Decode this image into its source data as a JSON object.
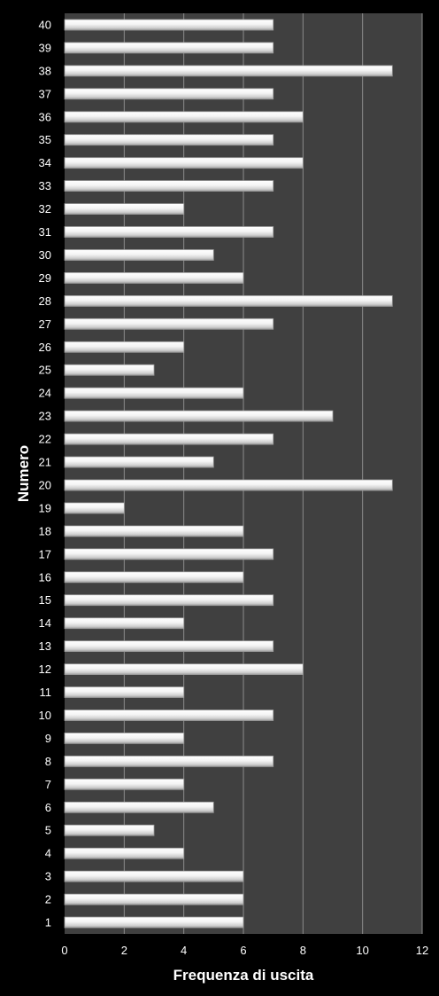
{
  "chart_data": {
    "type": "bar",
    "orientation": "horizontal",
    "categories": [
      "1",
      "2",
      "3",
      "4",
      "5",
      "6",
      "7",
      "8",
      "9",
      "10",
      "11",
      "12",
      "13",
      "14",
      "15",
      "16",
      "17",
      "18",
      "19",
      "20",
      "21",
      "22",
      "23",
      "24",
      "25",
      "26",
      "27",
      "28",
      "29",
      "30",
      "31",
      "32",
      "33",
      "34",
      "35",
      "36",
      "37",
      "38",
      "39",
      "40"
    ],
    "values": [
      6,
      6,
      6,
      4,
      3,
      5,
      4,
      7,
      4,
      7,
      4,
      8,
      7,
      4,
      7,
      6,
      7,
      6,
      2,
      11,
      5,
      7,
      9,
      6,
      3,
      4,
      7,
      11,
      6,
      5,
      7,
      4,
      7,
      8,
      7,
      8,
      7,
      11,
      7,
      7
    ],
    "title": "",
    "xlabel": "Frequenza di uscita",
    "ylabel": "Numero",
    "xlim": [
      0,
      12
    ],
    "xticks": [
      "0",
      "2",
      "4",
      "6",
      "8",
      "10",
      "12"
    ],
    "grid": true,
    "legend": "none",
    "colors": {
      "background": "#000000",
      "plot_area": "#404040",
      "gridline": "#8c8c8c",
      "bar_fill": "#f2f2f2",
      "bar_shadow": "#9a9a9a",
      "text": "#ffffff"
    }
  }
}
